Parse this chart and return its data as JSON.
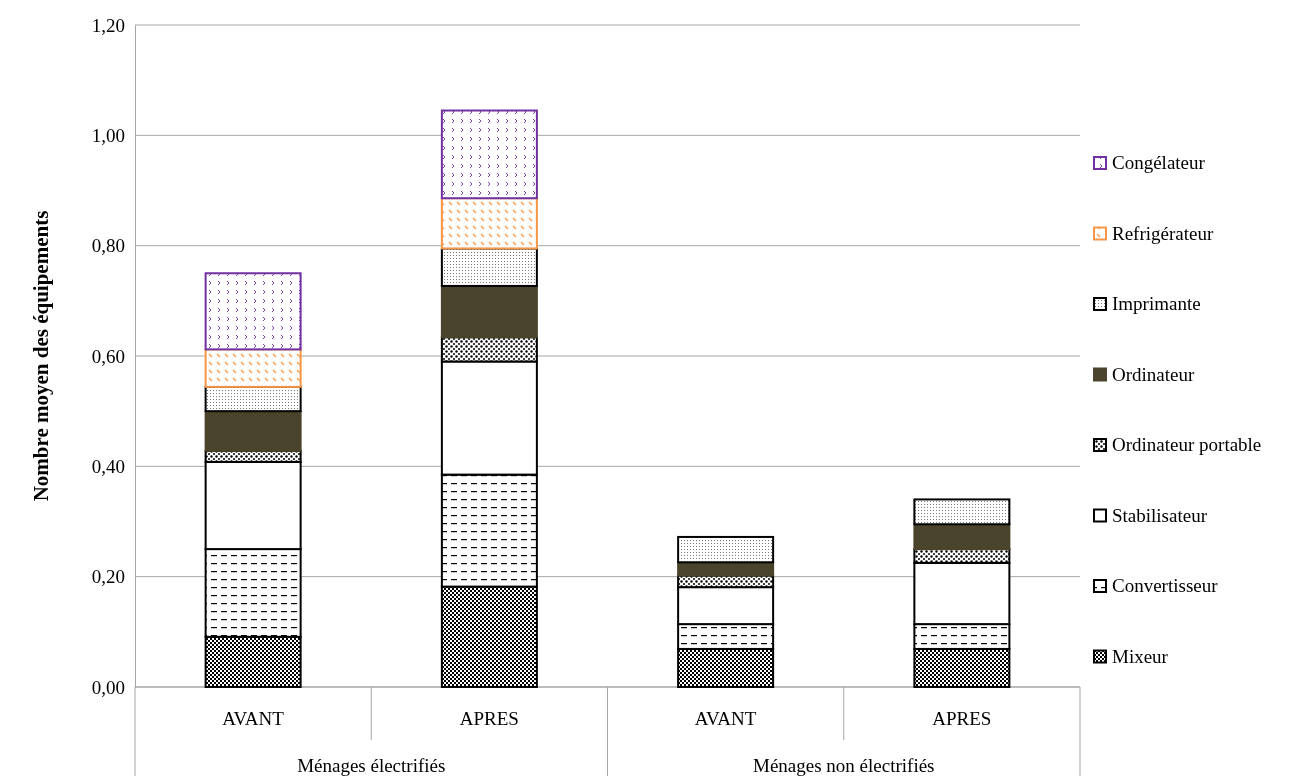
{
  "chart_data": {
    "type": "bar",
    "stacked": true,
    "ylabel": "Nombre moyen des équipements",
    "categories": [
      "AVANT",
      "APRES",
      "AVANT",
      "APRES"
    ],
    "annotations": [
      "Ménages électrifiés",
      "Ménages non électrifiés"
    ],
    "series": [
      {
        "name": "Mixeur",
        "color": "#000000",
        "values": [
          0.091,
          0.182,
          0.069,
          0.069
        ]
      },
      {
        "name": "Convertisseur",
        "color": "#000000",
        "values": [
          0.159,
          0.203,
          0.045,
          0.045
        ]
      },
      {
        "name": "Stabilisateur",
        "color": "#ffffff",
        "values": [
          0.158,
          0.205,
          0.067,
          0.111
        ]
      },
      {
        "name": "Ordinateur portable",
        "color": "#000000",
        "values": [
          0.02,
          0.044,
          0.021,
          0.025
        ]
      },
      {
        "name": "Ordinateur",
        "color": "#4b442c",
        "values": [
          0.072,
          0.093,
          0.024,
          0.045
        ]
      },
      {
        "name": "Imprimante",
        "color": "#000000",
        "values": [
          0.044,
          0.068,
          0.046,
          0.045
        ]
      },
      {
        "name": "Refrigérateur",
        "color": "#f79646",
        "values": [
          0.068,
          0.091,
          null,
          null
        ]
      },
      {
        "name": "Congélateur",
        "color": "#7030a0",
        "values": [
          0.138,
          0.159,
          null,
          null
        ]
      }
    ],
    "ylim": [
      0,
      1.2
    ],
    "yticks": [
      {
        "value": 0,
        "label": "0,00"
      },
      {
        "value": 0.2,
        "label": "0,20"
      },
      {
        "value": 0.4,
        "label": "0,40"
      },
      {
        "value": 0.6,
        "label": "0,60"
      },
      {
        "value": 0.8,
        "label": "0,80"
      },
      {
        "value": 1.0,
        "label": "1,00"
      },
      {
        "value": 1.2,
        "label": "1,20"
      }
    ],
    "grid": "y",
    "legend": "right"
  }
}
